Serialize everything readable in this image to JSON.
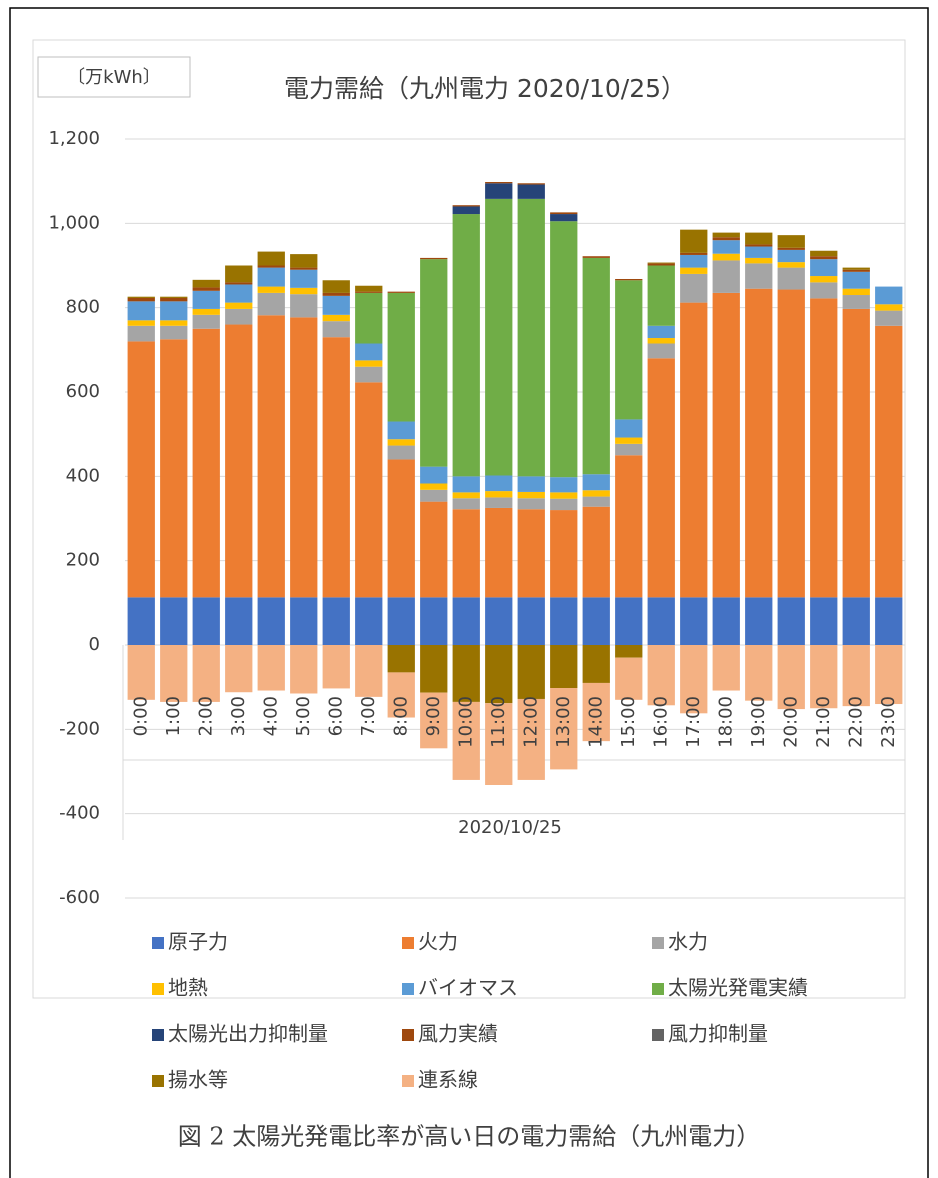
{
  "chart_data": {
    "type": "stacked_bar",
    "title": "電力需給（九州電力 2020/10/25）",
    "unit_label": "〔万kWh〕",
    "x_label": "2020/10/25",
    "caption": "図 2 太陽光発電比率が高い日の電力需給（九州電力）",
    "categories": [
      "0:00",
      "1:00",
      "2:00",
      "3:00",
      "4:00",
      "5:00",
      "6:00",
      "7:00",
      "8:00",
      "9:00",
      "10:00",
      "11:00",
      "12:00",
      "13:00",
      "14:00",
      "15:00",
      "16:00",
      "17:00",
      "18:00",
      "19:00",
      "20:00",
      "21:00",
      "22:00",
      "23:00"
    ],
    "series": [
      {
        "name": "原子力",
        "color": "#4472c4",
        "values": [
          113,
          113,
          113,
          113,
          113,
          113,
          113,
          113,
          113,
          113,
          113,
          113,
          113,
          113,
          113,
          113,
          113,
          113,
          113,
          113,
          113,
          113,
          113,
          113
        ]
      },
      {
        "name": "火力",
        "color": "#ed7d31",
        "values": [
          607,
          612,
          637,
          647,
          669,
          664,
          617,
          510,
          327,
          227,
          209,
          212,
          209,
          207,
          215,
          337,
          567,
          699,
          722,
          732,
          730,
          709,
          684,
          644
        ]
      },
      {
        "name": "水力",
        "color": "#a5a5a5",
        "values": [
          37,
          32,
          33,
          37,
          53,
          55,
          38,
          37,
          33,
          28,
          26,
          25,
          26,
          27,
          24,
          27,
          35,
          68,
          77,
          60,
          52,
          38,
          33,
          36
        ]
      },
      {
        "name": "地熱",
        "color": "#ffc000",
        "values": [
          13,
          13,
          14,
          15,
          15,
          15,
          15,
          15,
          15,
          15,
          14,
          15,
          15,
          15,
          15,
          15,
          13,
          15,
          16,
          13,
          13,
          15,
          15,
          15
        ]
      },
      {
        "name": "バイオマス",
        "color": "#5b9bd5",
        "values": [
          45,
          45,
          43,
          43,
          45,
          43,
          45,
          40,
          42,
          40,
          38,
          37,
          37,
          36,
          38,
          43,
          29,
          30,
          32,
          27,
          29,
          40,
          40,
          42
        ]
      },
      {
        "name": "太陽光発電実績",
        "color": "#70ad47",
        "values": [
          0,
          0,
          0,
          0,
          0,
          0,
          0,
          120,
          305,
          492,
          622,
          656,
          658,
          607,
          513,
          330,
          143,
          0,
          0,
          0,
          0,
          0,
          0,
          0
        ]
      },
      {
        "name": "太陽光出力抑制量",
        "color": "#264478",
        "values": [
          0,
          0,
          0,
          0,
          0,
          0,
          0,
          0,
          0,
          0,
          18,
          37,
          34,
          17,
          0,
          0,
          0,
          0,
          0,
          0,
          0,
          0,
          0,
          0
        ]
      },
      {
        "name": "風力実績",
        "color": "#9e480e",
        "values": [
          8,
          8,
          8,
          5,
          5,
          5,
          7,
          3,
          3,
          3,
          3,
          3,
          3,
          4,
          4,
          3,
          5,
          5,
          7,
          5,
          5,
          7,
          5,
          0
        ]
      },
      {
        "name": "風力抑制量",
        "color": "#636363",
        "values": [
          0,
          0,
          0,
          0,
          0,
          0,
          0,
          0,
          0,
          0,
          0,
          0,
          0,
          0,
          0,
          0,
          0,
          0,
          0,
          0,
          0,
          0,
          0,
          0
        ]
      },
      {
        "name": "揚水等",
        "color": "#997300",
        "values": [
          3,
          3,
          18,
          40,
          33,
          32,
          30,
          14,
          -65,
          -113,
          -135,
          -138,
          -128,
          -102,
          -90,
          -30,
          2,
          55,
          11,
          28,
          30,
          13,
          5,
          0
        ]
      },
      {
        "name": "連系線",
        "color": "#f4b183",
        "values": [
          -130,
          -135,
          -135,
          -112,
          -108,
          -115,
          -103,
          -123,
          -107,
          -132,
          -185,
          -194,
          -192,
          -193,
          -138,
          -100,
          -143,
          -162,
          -108,
          -132,
          -152,
          -150,
          -145,
          -140
        ]
      }
    ],
    "ylim": [
      -600,
      1200
    ],
    "yticks": [
      -600,
      -400,
      -200,
      0,
      200,
      400,
      600,
      800,
      {
        "value": 1000,
        "label": "1,000"
      },
      {
        "value": 1200,
        "label": "1,200"
      }
    ],
    "grid": true
  }
}
